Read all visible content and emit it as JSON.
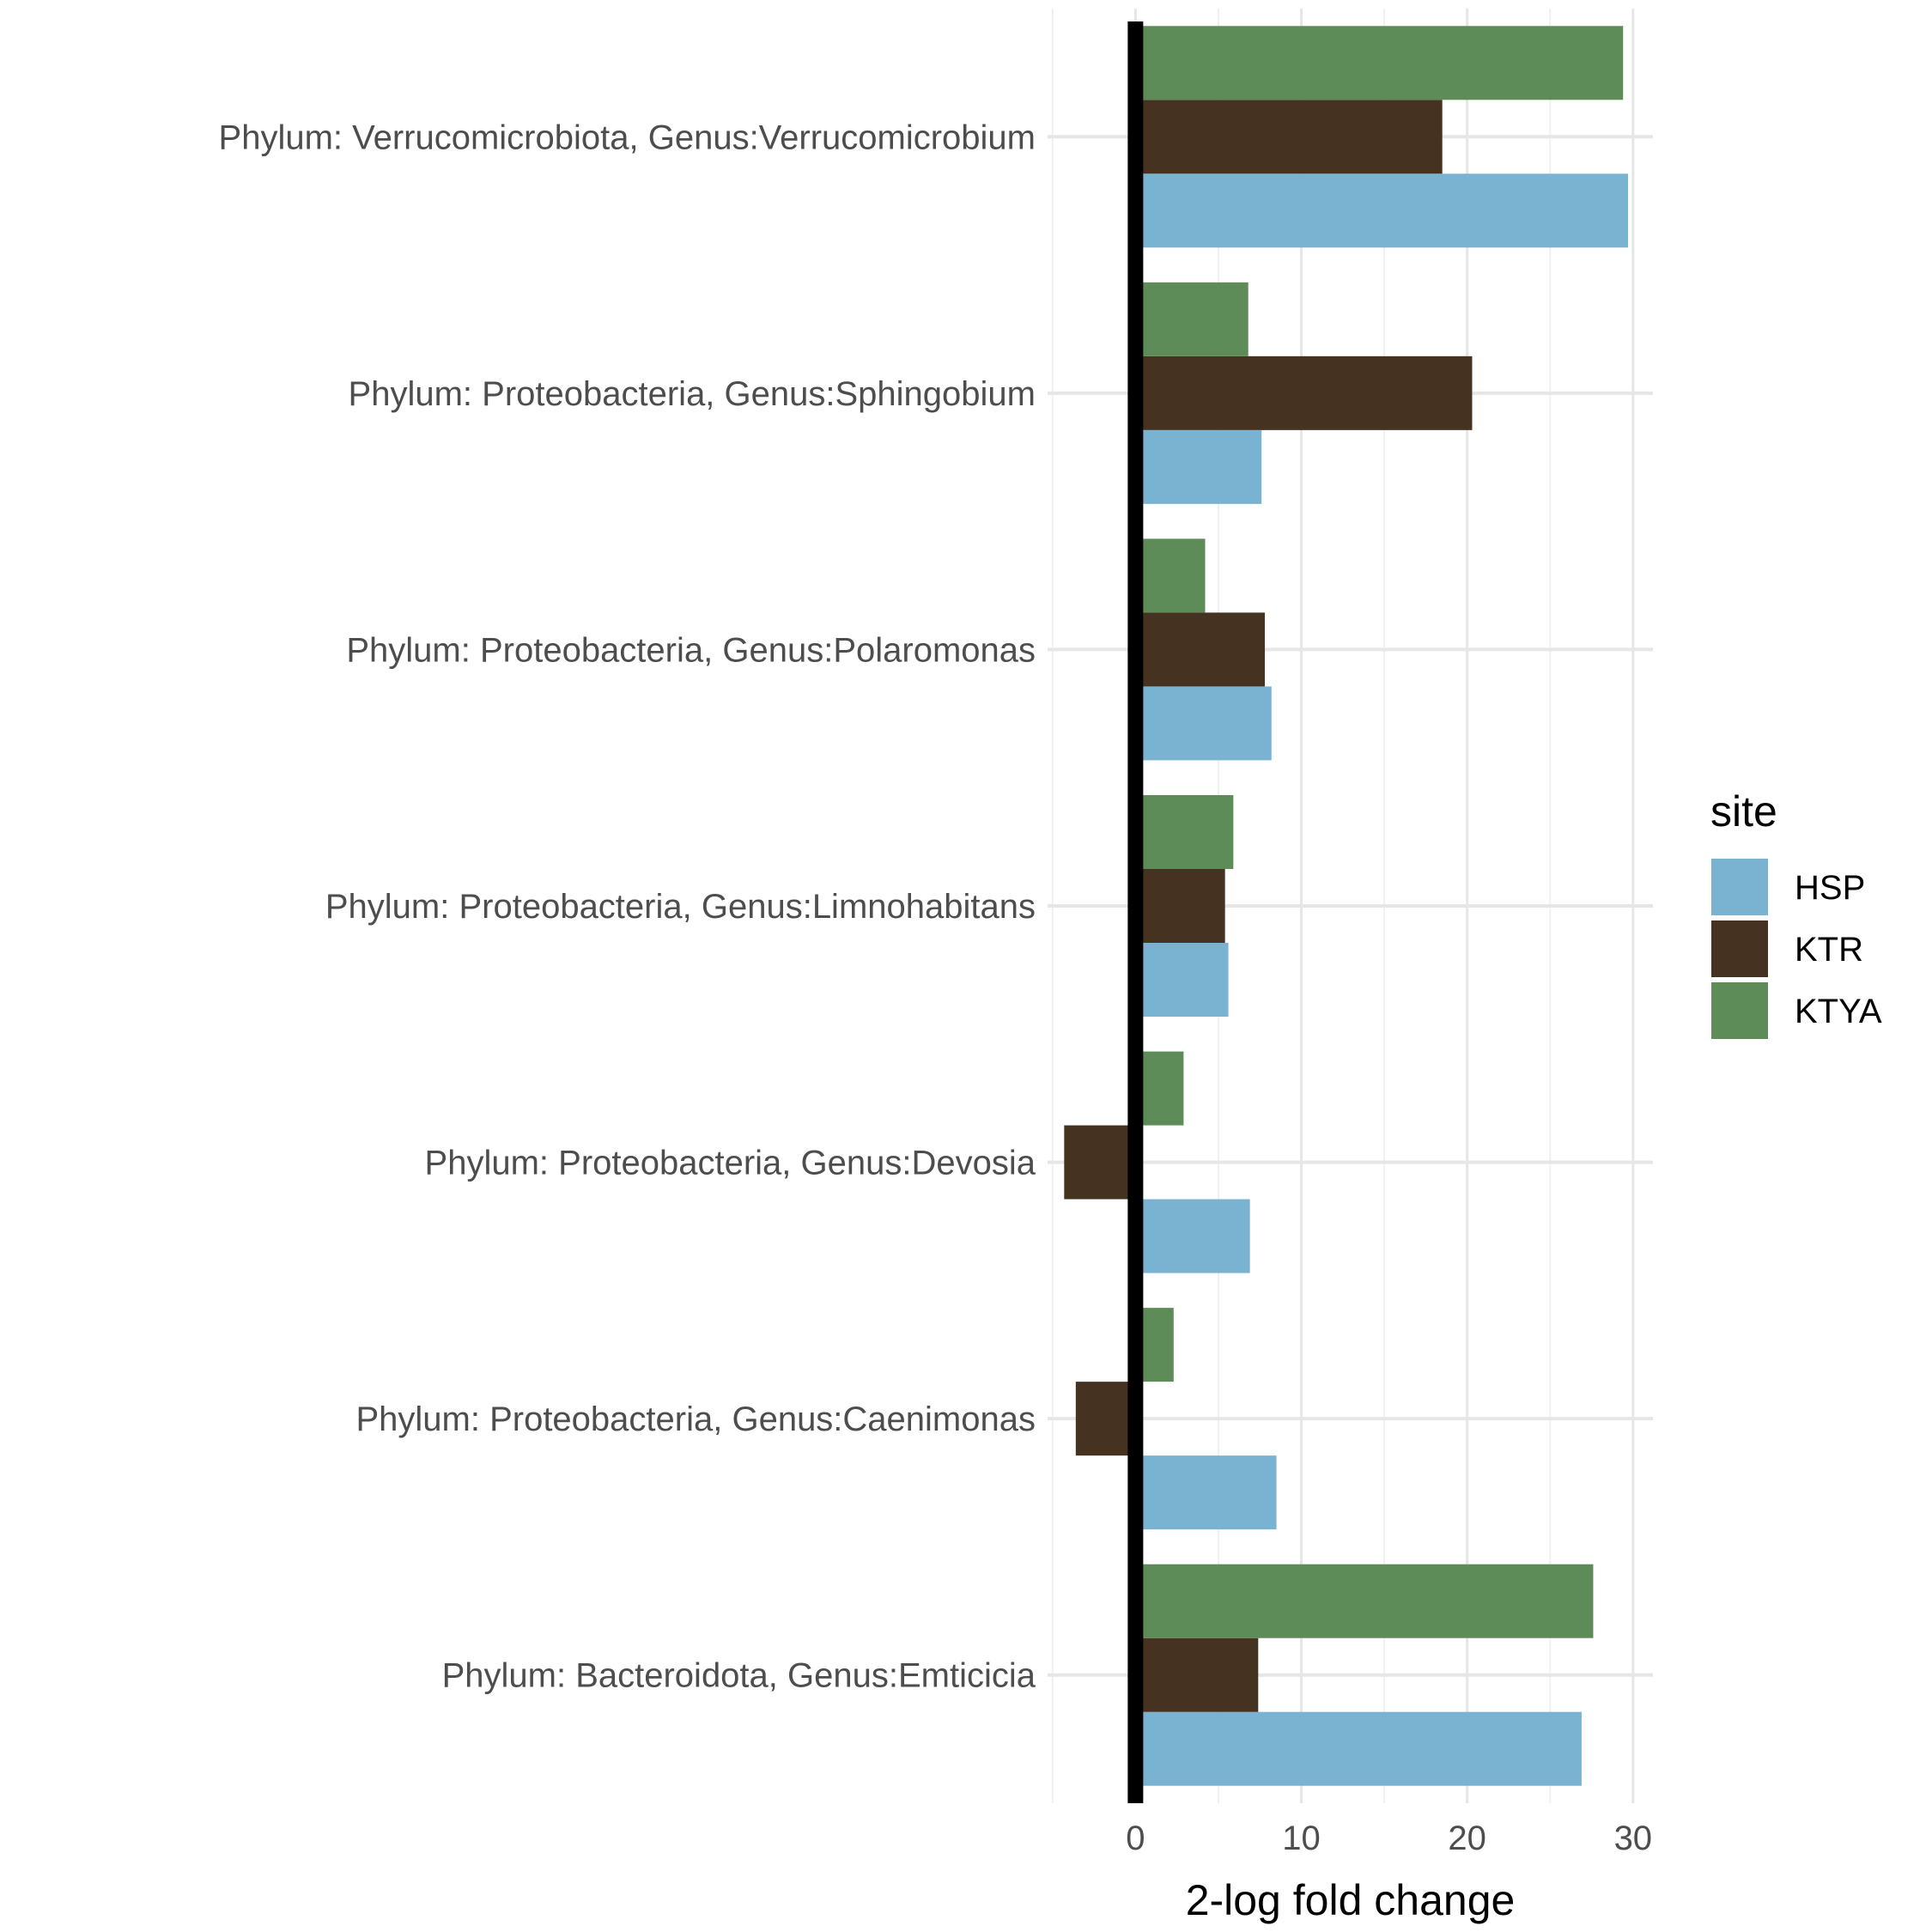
{
  "chart_data": {
    "type": "bar",
    "orientation": "horizontal",
    "categories": [
      "Phylum: Verrucomicrobiota, Genus:Verrucomicrobium",
      "Phylum: Proteobacteria, Genus:Sphingobium",
      "Phylum: Proteobacteria, Genus:Polaromonas",
      "Phylum: Proteobacteria, Genus:Limnohabitans",
      "Phylum: Proteobacteria, Genus:Devosia",
      "Phylum: Proteobacteria, Genus:Caenimonas",
      "Phylum: Bacteroidota, Genus:Emticicia"
    ],
    "series": [
      {
        "name": "HSP",
        "color": "#7ab3d1",
        "values": [
          29.7,
          7.6,
          8.2,
          5.6,
          6.9,
          8.5,
          26.9
        ]
      },
      {
        "name": "KTR",
        "color": "#453221",
        "values": [
          18.5,
          20.3,
          7.8,
          5.4,
          -4.3,
          -3.6,
          7.4
        ]
      },
      {
        "name": "KTYA",
        "color": "#5e8c59",
        "values": [
          29.4,
          6.8,
          4.2,
          5.9,
          2.9,
          2.3,
          27.6
        ]
      }
    ],
    "xlabel": "2-log fold change",
    "ylabel": "",
    "xlim": [
      -5.3,
      31.2
    ],
    "xticks": [
      0,
      10,
      20,
      30
    ],
    "legend_title": "site",
    "legend_position": "right",
    "grid": true,
    "zero_line": true
  }
}
